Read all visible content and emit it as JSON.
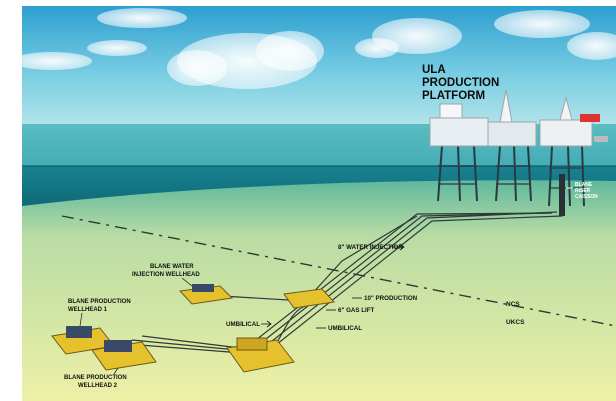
{
  "platform": {
    "line1": "ULA",
    "line2": "PRODUCTION",
    "line3": "PLATFORM"
  },
  "riser": {
    "line1": "BLANE",
    "line2": "RISER",
    "line3": "CAISSON"
  },
  "water_injection_wellhead": {
    "line1": "BLANE WATER",
    "line2": "INJECTION WELLHEAD"
  },
  "production_wellhead_1": {
    "line1": "BLANE PRODUCTION",
    "line2": "WELLHEAD 1"
  },
  "production_wellhead_2": {
    "line1": "BLANE PRODUCTION",
    "line2": "WELLHEAD 2"
  },
  "lines": {
    "water_injection": "8\" WATER INJECTION",
    "production": "10\" PRODUCTION",
    "gas_lift": "6\" GAS LIFT",
    "umbilical_left": "UMBILICAL",
    "umbilical_right": "UMBILICAL"
  },
  "border": {
    "ncs": "NCS",
    "ukcs": "UKCS"
  },
  "colors": {
    "sky": "#8fd3e6",
    "sea": "#1f8a9a",
    "seabed": "#e3eca8",
    "structure": "#e8c233"
  }
}
